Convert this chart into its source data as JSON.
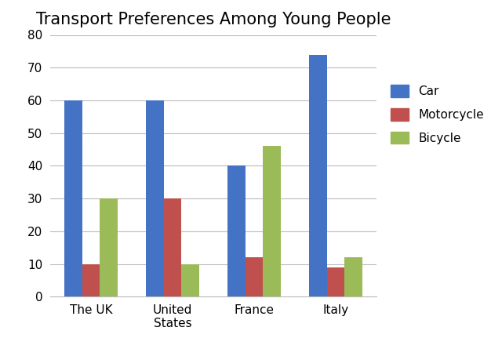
{
  "title": "Transport Preferences Among Young People",
  "categories": [
    "The UK",
    "United\nStates",
    "France",
    "Italy"
  ],
  "series": {
    "Car": [
      60,
      60,
      40,
      74
    ],
    "Motorcycle": [
      10,
      30,
      12,
      9
    ],
    "Bicycle": [
      30,
      10,
      46,
      12
    ]
  },
  "colors": {
    "Car": "#4472C4",
    "Motorcycle": "#C0504D",
    "Bicycle": "#9BBB59"
  },
  "ylim": [
    0,
    80
  ],
  "yticks": [
    0,
    10,
    20,
    30,
    40,
    50,
    60,
    70,
    80
  ],
  "title_fontsize": 15,
  "legend_labels": [
    "Car",
    "Motorcycle",
    "Bicycle"
  ],
  "background_color": "#ffffff",
  "bar_width": 0.22,
  "legend_fontsize": 11
}
